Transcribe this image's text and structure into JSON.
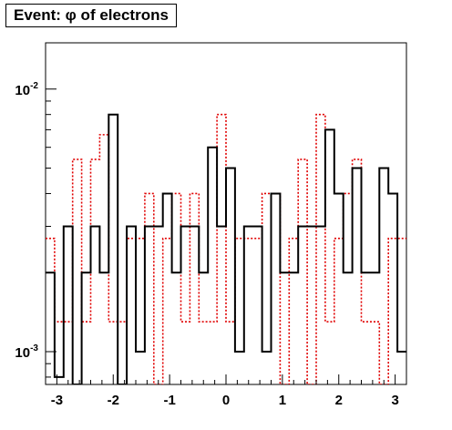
{
  "chart_data": {
    "type": "histogram-step",
    "title": "Event: φ of electrons",
    "xlabel": "",
    "ylabel": "",
    "x_range": [
      -3.2,
      3.2
    ],
    "y_range": [
      0.00075,
      0.015
    ],
    "y_scale": "log",
    "grid": false,
    "x_ticks": [
      {
        "value": -3,
        "label": "-3"
      },
      {
        "value": -2,
        "label": "-2"
      },
      {
        "value": -1,
        "label": "-1"
      },
      {
        "value": 0,
        "label": "0"
      },
      {
        "value": 1,
        "label": "1"
      },
      {
        "value": 2,
        "label": "2"
      },
      {
        "value": 3,
        "label": "3"
      }
    ],
    "y_major_ticks": [
      {
        "value": 0.001,
        "base": "10",
        "exp": "-3"
      },
      {
        "value": 0.01,
        "base": "10",
        "exp": "-2"
      }
    ],
    "bin_edges": [
      -3.2,
      -3.04,
      -2.88,
      -2.72,
      -2.56,
      -2.4,
      -2.24,
      -2.08,
      -1.92,
      -1.76,
      -1.6,
      -1.44,
      -1.28,
      -1.12,
      -0.96,
      -0.8,
      -0.64,
      -0.48,
      -0.32,
      -0.16,
      0.0,
      0.16,
      0.32,
      0.48,
      0.64,
      0.8,
      0.96,
      1.12,
      1.28,
      1.44,
      1.6,
      1.76,
      1.92,
      2.08,
      2.24,
      2.4,
      2.56,
      2.72,
      2.88,
      3.04,
      3.2
    ],
    "series": [
      {
        "color": "#000000",
        "style": "solid",
        "values": [
          0.002,
          0.0008,
          0.003,
          0.0006,
          0.002,
          0.003,
          0.002,
          0.008,
          0.0006,
          0.003,
          0.001,
          0.003,
          0.003,
          0.004,
          0.002,
          0.003,
          0.003,
          0.002,
          0.006,
          0.003,
          0.005,
          0.001,
          0.003,
          0.003,
          0.001,
          0.004,
          0.002,
          0.002,
          0.003,
          0.003,
          0.003,
          0.007,
          0.004,
          0.002,
          0.005,
          0.002,
          0.002,
          0.005,
          0.004,
          0.001
        ]
      },
      {
        "color": "#e00000",
        "style": "dotted",
        "values": [
          0.0027,
          0.0013,
          0.0013,
          0.0054,
          0.0013,
          0.0054,
          0.0067,
          0.0013,
          0.0013,
          0.0027,
          0.0027,
          0.004,
          0.0004,
          0.0027,
          0.004,
          0.0013,
          0.004,
          0.0013,
          0.0013,
          0.008,
          0.0013,
          0.0027,
          0.0027,
          0.0027,
          0.004,
          0.004,
          0.0004,
          0.0027,
          0.0054,
          0.0004,
          0.008,
          0.0013,
          0.0027,
          0.004,
          0.0054,
          0.0013,
          0.0013,
          0.0004,
          0.0027,
          0.0027
        ]
      }
    ]
  }
}
